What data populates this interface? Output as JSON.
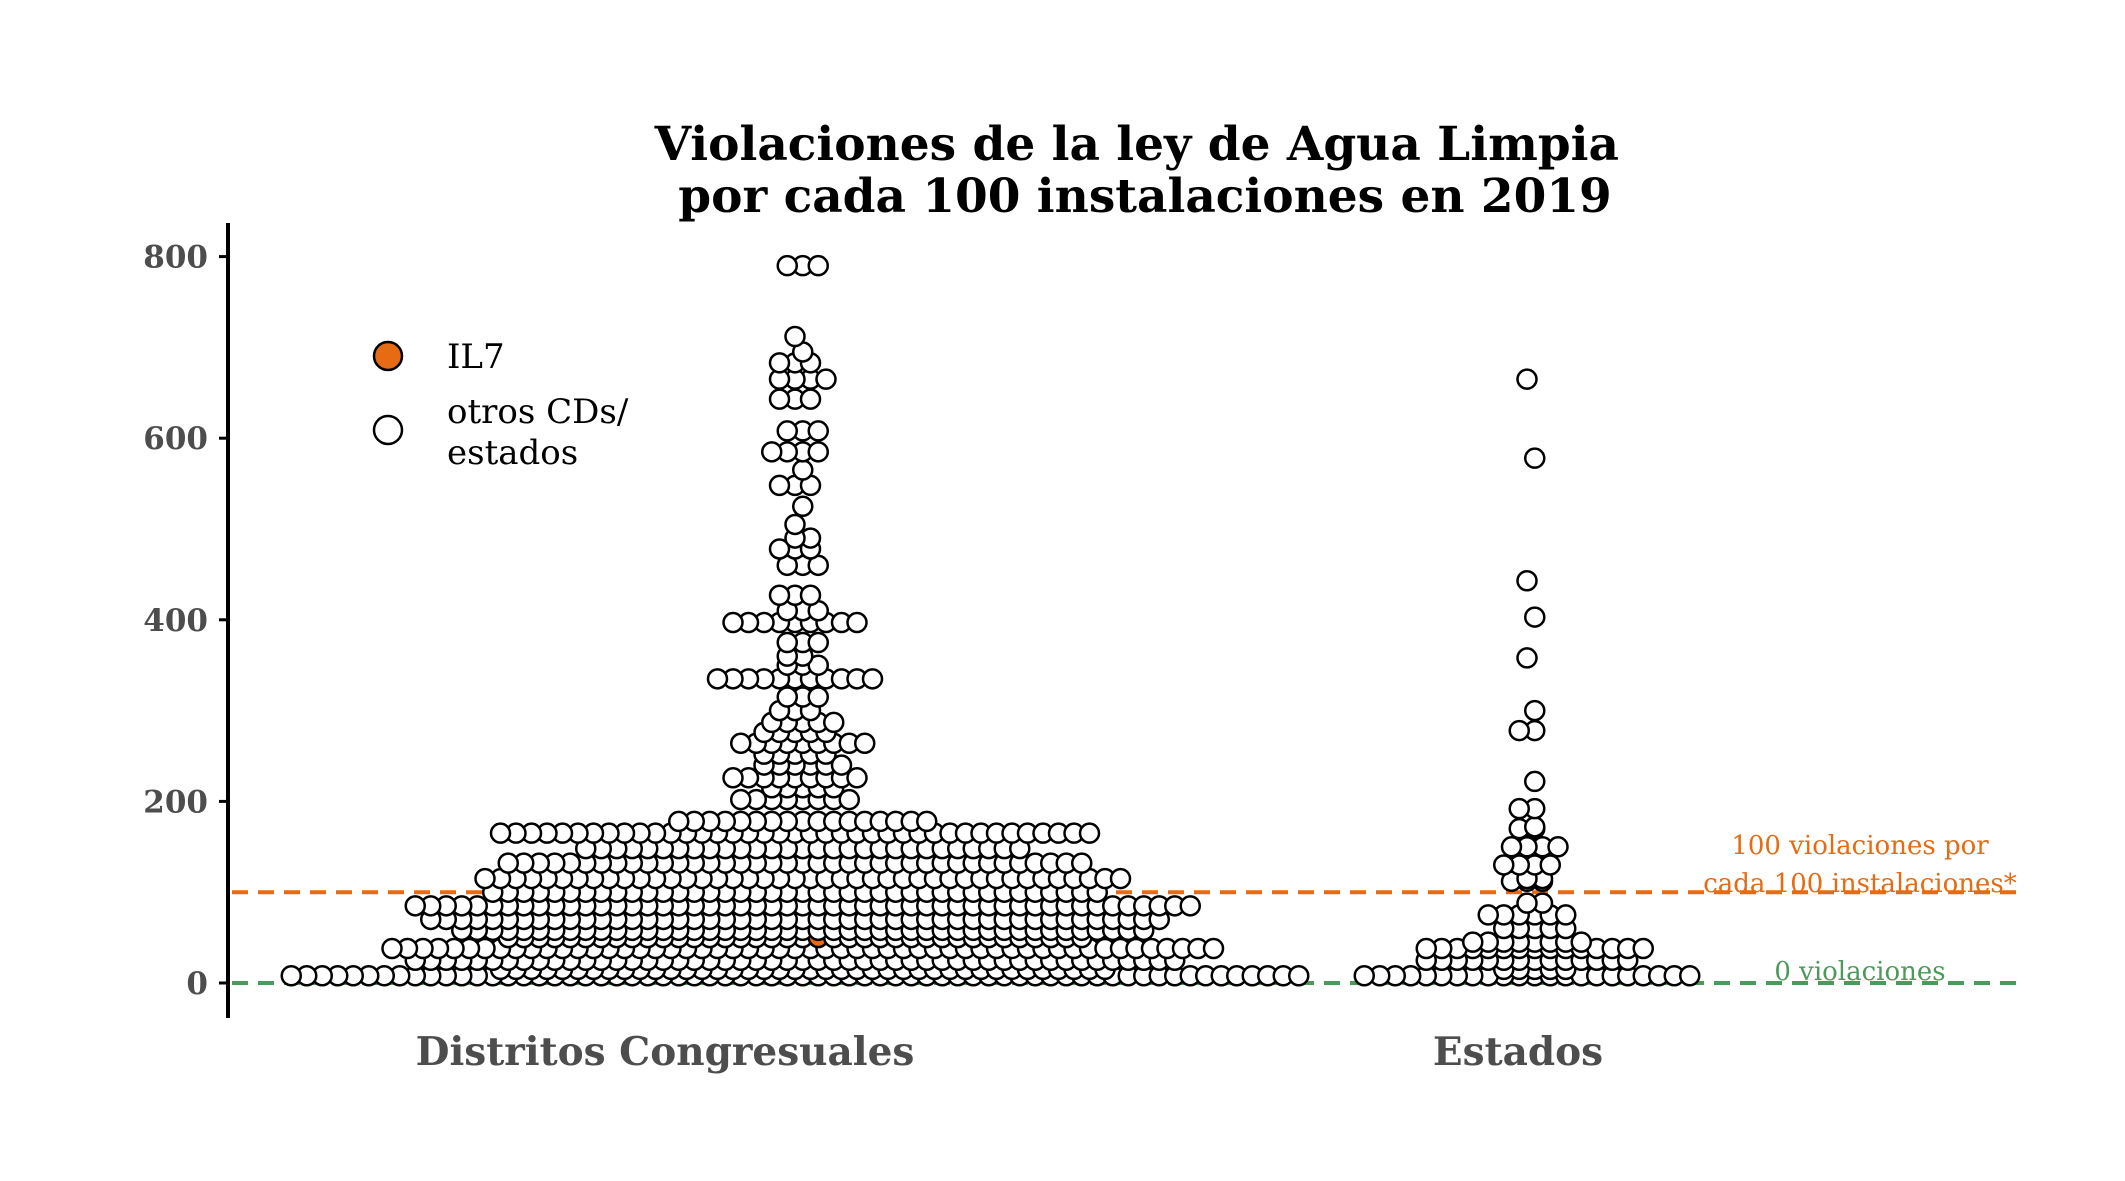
{
  "chart_data": {
    "type": "scatter",
    "subtype": "beeswarm",
    "title": [
      "Violaciones de la ley de Agua Limpia",
      "por cada 100 instalaciones en 2019"
    ],
    "categories": [
      "Distritos Congresuales",
      "Estados"
    ],
    "ylim": [
      -40,
      830
    ],
    "yticks": [
      0,
      200,
      400,
      600,
      800
    ],
    "grid": false,
    "legend_position": "top-left",
    "legend": [
      {
        "label": "IL7",
        "color": "#e66b12"
      },
      {
        "label": "otros CDs/\nestados",
        "color": "#ffffff"
      }
    ],
    "reference_lines": [
      {
        "y": 100,
        "color": "#e66b12",
        "label": [
          "100 violaciones por",
          "cada 100 instalaciones*"
        ]
      },
      {
        "y": 0,
        "color": "#4a9a5a",
        "label": [
          "0 violaciones"
        ]
      }
    ],
    "highlight": {
      "name": "IL7",
      "category": "Distritos Congresuales",
      "value": 50,
      "color": "#e66b12"
    },
    "series": [
      {
        "name": "Distritos Congresuales",
        "values": [
          8,
          8,
          8,
          8,
          8,
          8,
          8,
          8,
          8,
          8,
          8,
          8,
          8,
          8,
          8,
          8,
          8,
          8,
          8,
          8,
          8,
          8,
          8,
          8,
          8,
          8,
          8,
          8,
          8,
          8,
          8,
          8,
          8,
          8,
          8,
          8,
          8,
          8,
          8,
          8,
          8,
          8,
          8,
          8,
          8,
          8,
          8,
          8,
          8,
          8,
          8,
          8,
          8,
          8,
          8,
          8,
          8,
          8,
          8,
          8,
          8,
          8,
          8,
          8,
          8,
          8,
          15,
          15,
          15,
          15,
          15,
          15,
          15,
          15,
          15,
          15,
          15,
          15,
          15,
          15,
          15,
          15,
          15,
          15,
          15,
          15,
          15,
          15,
          15,
          15,
          15,
          15,
          15,
          15,
          15,
          15,
          15,
          15,
          15,
          15,
          15,
          15,
          15,
          15,
          15,
          15,
          25,
          25,
          25,
          25,
          25,
          25,
          25,
          25,
          25,
          25,
          25,
          25,
          25,
          25,
          25,
          25,
          25,
          25,
          25,
          25,
          25,
          25,
          25,
          25,
          25,
          25,
          25,
          25,
          25,
          25,
          25,
          25,
          25,
          25,
          25,
          25,
          25,
          25,
          25,
          25,
          25,
          25,
          25,
          25,
          25,
          25,
          25,
          25,
          25,
          25,
          38,
          38,
          38,
          38,
          38,
          38,
          38,
          38,
          38,
          38,
          38,
          38,
          38,
          38,
          38,
          38,
          38,
          38,
          38,
          38,
          38,
          38,
          38,
          38,
          38,
          38,
          38,
          38,
          38,
          38,
          38,
          38,
          38,
          38,
          38,
          38,
          38,
          38,
          38,
          38,
          38,
          38,
          38,
          38,
          38,
          38,
          38,
          38,
          38,
          38,
          38,
          38,
          38,
          38,
          50,
          50,
          50,
          50,
          50,
          50,
          50,
          50,
          50,
          50,
          50,
          50,
          50,
          50,
          50,
          50,
          50,
          50,
          50,
          50,
          50,
          50,
          50,
          50,
          50,
          50,
          50,
          50,
          50,
          50,
          50,
          50,
          50,
          50,
          50,
          50,
          50,
          50,
          58,
          58,
          58,
          58,
          58,
          58,
          58,
          58,
          58,
          58,
          58,
          58,
          58,
          58,
          58,
          58,
          58,
          58,
          58,
          58,
          58,
          58,
          58,
          58,
          58,
          58,
          58,
          58,
          58,
          58,
          58,
          58,
          58,
          58,
          58,
          58,
          58,
          58,
          58,
          58,
          58,
          58,
          58,
          58,
          58,
          70,
          70,
          70,
          70,
          70,
          70,
          70,
          70,
          70,
          70,
          70,
          70,
          70,
          70,
          70,
          70,
          70,
          70,
          70,
          70,
          70,
          70,
          70,
          70,
          70,
          70,
          70,
          70,
          70,
          70,
          70,
          70,
          70,
          70,
          70,
          70,
          70,
          70,
          70,
          70,
          70,
          70,
          70,
          70,
          70,
          70,
          70,
          70,
          85,
          85,
          85,
          85,
          85,
          85,
          85,
          85,
          85,
          85,
          85,
          85,
          85,
          85,
          85,
          85,
          85,
          85,
          85,
          85,
          85,
          85,
          85,
          85,
          85,
          85,
          85,
          85,
          85,
          85,
          85,
          85,
          85,
          85,
          85,
          85,
          85,
          85,
          85,
          85,
          85,
          85,
          85,
          85,
          85,
          85,
          85,
          85,
          85,
          85,
          85,
          100,
          100,
          100,
          100,
          100,
          100,
          100,
          100,
          100,
          100,
          100,
          100,
          100,
          100,
          100,
          100,
          100,
          100,
          100,
          100,
          100,
          100,
          100,
          100,
          100,
          100,
          100,
          100,
          100,
          100,
          100,
          100,
          100,
          100,
          100,
          100,
          100,
          100,
          100,
          100,
          115,
          115,
          115,
          115,
          115,
          115,
          115,
          115,
          115,
          115,
          115,
          115,
          115,
          115,
          115,
          115,
          115,
          115,
          115,
          115,
          115,
          115,
          115,
          115,
          115,
          115,
          115,
          115,
          115,
          115,
          115,
          115,
          115,
          115,
          115,
          115,
          115,
          115,
          115,
          115,
          115,
          115,
          132,
          132,
          132,
          132,
          132,
          132,
          132,
          132,
          132,
          132,
          132,
          132,
          132,
          132,
          132,
          132,
          132,
          132,
          132,
          132,
          132,
          132,
          132,
          132,
          132,
          132,
          132,
          132,
          132,
          132,
          132,
          132,
          132,
          132,
          132,
          132,
          132,
          132,
          148,
          148,
          148,
          148,
          148,
          148,
          148,
          148,
          148,
          148,
          148,
          148,
          148,
          148,
          148,
          148,
          148,
          148,
          148,
          148,
          148,
          148,
          148,
          148,
          148,
          148,
          148,
          148,
          148,
          165,
          165,
          165,
          165,
          165,
          165,
          165,
          165,
          165,
          165,
          165,
          165,
          165,
          165,
          165,
          165,
          165,
          165,
          165,
          165,
          165,
          165,
          165,
          165,
          165,
          165,
          165,
          165,
          165,
          165,
          165,
          165,
          165,
          165,
          165,
          165,
          165,
          165,
          165,
          178,
          178,
          178,
          178,
          178,
          178,
          178,
          178,
          178,
          178,
          178,
          178,
          178,
          178,
          178,
          178,
          178,
          202,
          202,
          202,
          202,
          202,
          202,
          202,
          202,
          215,
          215,
          215,
          215,
          215,
          226,
          226,
          226,
          226,
          226,
          226,
          226,
          226,
          226,
          240,
          240,
          240,
          240,
          240,
          240,
          252,
          252,
          252,
          252,
          252,
          264,
          264,
          264,
          264,
          264,
          264,
          264,
          264,
          264,
          276,
          276,
          276,
          276,
          276,
          287,
          287,
          287,
          287,
          287,
          300,
          300,
          300,
          315,
          315,
          315,
          335,
          335,
          335,
          335,
          335,
          335,
          335,
          335,
          335,
          335,
          335,
          350,
          350,
          350,
          360,
          360,
          375,
          375,
          375,
          397,
          397,
          397,
          397,
          397,
          397,
          397,
          397,
          397,
          410,
          410,
          410,
          427,
          427,
          427,
          460,
          460,
          460,
          478,
          478,
          478,
          490,
          490,
          505,
          525,
          548,
          548,
          548,
          565,
          585,
          585,
          585,
          585,
          608,
          608,
          608,
          643,
          643,
          643,
          665,
          665,
          665,
          665,
          683,
          683,
          683,
          695,
          712,
          790,
          790,
          790
        ]
      },
      {
        "name": "Estados",
        "values": [
          8,
          8,
          8,
          8,
          8,
          8,
          8,
          8,
          8,
          8,
          8,
          8,
          8,
          8,
          8,
          8,
          8,
          8,
          8,
          8,
          8,
          8,
          15,
          15,
          15,
          15,
          15,
          25,
          25,
          25,
          25,
          25,
          25,
          25,
          25,
          25,
          25,
          25,
          25,
          25,
          25,
          38,
          38,
          38,
          38,
          38,
          38,
          38,
          38,
          38,
          38,
          38,
          38,
          38,
          38,
          38,
          45,
          45,
          45,
          45,
          45,
          45,
          45,
          45,
          60,
          60,
          60,
          60,
          60,
          75,
          75,
          75,
          75,
          75,
          75,
          88,
          88,
          112,
          112,
          112,
          115,
          115,
          130,
          130,
          130,
          130,
          150,
          150,
          150,
          150,
          170,
          170,
          172,
          192,
          192,
          222,
          278,
          278,
          300,
          358,
          403,
          443,
          578,
          665
        ]
      }
    ]
  }
}
